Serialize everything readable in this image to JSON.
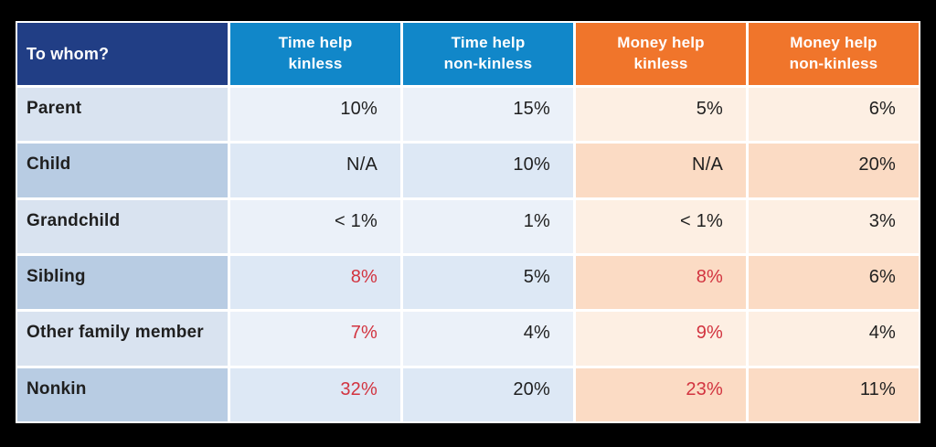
{
  "chart_data": {
    "type": "table",
    "title": "",
    "row_header": "To whom?",
    "columns": [
      "Time help kinless",
      "Time help non-kinless",
      "Money help kinless",
      "Money help non-kinless"
    ],
    "rows": [
      "Parent",
      "Child",
      "Grandchild",
      "Sibling",
      "Other family member",
      "Nonkin"
    ],
    "values": [
      [
        "10%",
        "15%",
        "5%",
        "6%"
      ],
      [
        "N/A",
        "10%",
        "N/A",
        "20%"
      ],
      [
        "< 1%",
        "1%",
        "< 1%",
        "3%"
      ],
      [
        "8%",
        "5%",
        "8%",
        "6%"
      ],
      [
        "7%",
        "4%",
        "9%",
        "4%"
      ],
      [
        "32%",
        "20%",
        "23%",
        "11%"
      ]
    ],
    "red_highlight_cells": [
      [
        3,
        0
      ],
      [
        3,
        2
      ],
      [
        4,
        0
      ],
      [
        4,
        2
      ],
      [
        5,
        0
      ],
      [
        5,
        2
      ]
    ],
    "legend_position": "none",
    "grid": "white cell gaps on black background"
  },
  "colors": {
    "page_background": "#000000",
    "cell_gap": "#FFFFFF",
    "header_navy": "#213E85",
    "header_blue": "#1187C9",
    "header_orange": "#F0752B",
    "row_label_light": "#D9E3F0",
    "row_label_dark": "#B8CCE3",
    "time_cell_light": "#EBF1F9",
    "time_cell_dark": "#DDE8F5",
    "money_cell_light": "#FDEFE3",
    "money_cell_dark": "#FBDBC4",
    "value_red": "#D2333F",
    "text_dark": "#1F1F1F",
    "header_text": "#FFFFFF"
  },
  "table": {
    "corner_label": "To whom?",
    "headers": [
      {
        "text": "Time help\nkinless"
      },
      {
        "text": "Time help\nnon-kinless"
      },
      {
        "text": "Money help\nkinless"
      },
      {
        "text": "Money help\nnon-kinless"
      }
    ],
    "rows": [
      {
        "label": "Parent",
        "cells": [
          {
            "text": "10%",
            "class": ""
          },
          {
            "text": "15%",
            "class": ""
          },
          {
            "text": "5%",
            "class": ""
          },
          {
            "text": "6%",
            "class": ""
          }
        ]
      },
      {
        "label": "Child",
        "cells": [
          {
            "text": "N/A",
            "class": ""
          },
          {
            "text": "10%",
            "class": ""
          },
          {
            "text": "N/A",
            "class": ""
          },
          {
            "text": "20%",
            "class": ""
          }
        ]
      },
      {
        "label": "Grandchild",
        "cells": [
          {
            "text": "< 1%",
            "class": ""
          },
          {
            "text": "1%",
            "class": ""
          },
          {
            "text": "< 1%",
            "class": ""
          },
          {
            "text": "3%",
            "class": ""
          }
        ]
      },
      {
        "label": "Sibling",
        "cells": [
          {
            "text": "8%",
            "class": "red"
          },
          {
            "text": "5%",
            "class": ""
          },
          {
            "text": "8%",
            "class": "red"
          },
          {
            "text": "6%",
            "class": ""
          }
        ]
      },
      {
        "label": "Other family member",
        "cells": [
          {
            "text": "7%",
            "class": "red"
          },
          {
            "text": "4%",
            "class": ""
          },
          {
            "text": "9%",
            "class": "red"
          },
          {
            "text": "4%",
            "class": ""
          }
        ]
      },
      {
        "label": "Nonkin",
        "cells": [
          {
            "text": "32%",
            "class": "red"
          },
          {
            "text": "20%",
            "class": ""
          },
          {
            "text": "23%",
            "class": "red"
          },
          {
            "text": "11%",
            "class": ""
          }
        ]
      }
    ]
  }
}
